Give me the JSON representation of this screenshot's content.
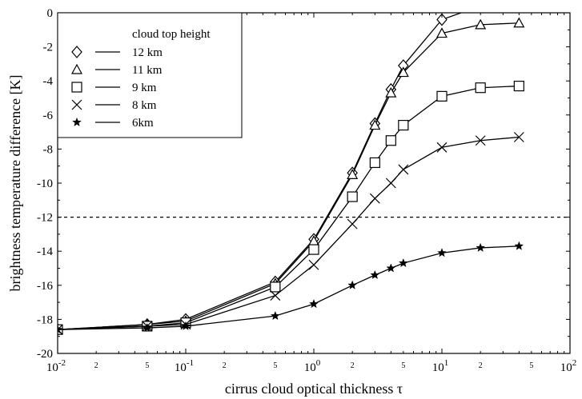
{
  "chart_data": {
    "type": "line",
    "xlabel": "cirrus cloud optical thickness τ",
    "ylabel": "brightness temperature difference [K]",
    "xscale": "log",
    "xlim": [
      0.01,
      100
    ],
    "ylim": [
      -20,
      0
    ],
    "x_tick_labels": [
      {
        "value": 0.01,
        "base": "10",
        "exp": "-2"
      },
      {
        "value": 0.1,
        "base": "10",
        "exp": "-1"
      },
      {
        "value": 1,
        "base": "10",
        "exp": "0"
      },
      {
        "value": 10,
        "base": "10",
        "exp": "1"
      },
      {
        "value": 100,
        "base": "10",
        "exp": "2"
      }
    ],
    "x_minor_labels": [
      {
        "value": 0.02,
        "label": "2"
      },
      {
        "value": 0.05,
        "label": "5"
      },
      {
        "value": 0.2,
        "label": "2"
      },
      {
        "value": 0.5,
        "label": "5"
      },
      {
        "value": 2,
        "label": "2"
      },
      {
        "value": 5,
        "label": "5"
      },
      {
        "value": 20,
        "label": "2"
      },
      {
        "value": 50,
        "label": "5"
      }
    ],
    "y_ticks": [
      0,
      -2,
      -4,
      -6,
      -8,
      -10,
      -12,
      -14,
      -16,
      -18,
      -20
    ],
    "y_tick_labels": [
      "0",
      "-2",
      "-4",
      "-6",
      "-8",
      "-10",
      "-12",
      "-14",
      "-16",
      "-18",
      "-20"
    ],
    "reference_line": {
      "y": -12,
      "style": "dashed"
    },
    "legend": {
      "title": "cloud top height",
      "placement": "top-left"
    },
    "x": [
      0.01,
      0.05,
      0.1,
      0.5,
      1,
      2,
      3,
      4,
      5,
      10,
      20,
      40
    ],
    "series": [
      {
        "name": "12 km",
        "marker": "diamond",
        "values": [
          -18.6,
          -18.3,
          -18.0,
          -15.8,
          -13.3,
          -9.4,
          -6.5,
          -4.5,
          -3.1,
          -0.4,
          0.4,
          0.6
        ]
      },
      {
        "name": "11 km",
        "marker": "triangle",
        "values": [
          -18.6,
          -18.3,
          -18.1,
          -15.9,
          -13.4,
          -9.5,
          -6.6,
          -4.7,
          -3.5,
          -1.2,
          -0.7,
          -0.6
        ]
      },
      {
        "name": "9 km",
        "marker": "square",
        "values": [
          -18.6,
          -18.4,
          -18.2,
          -16.1,
          -13.9,
          -10.8,
          -8.8,
          -7.5,
          -6.6,
          -4.9,
          -4.4,
          -4.3
        ]
      },
      {
        "name": "8 km",
        "marker": "cross",
        "values": [
          -18.6,
          -18.4,
          -18.3,
          -16.6,
          -14.8,
          -12.4,
          -10.9,
          -10.0,
          -9.2,
          -7.9,
          -7.5,
          -7.3
        ]
      },
      {
        "name": "6km",
        "marker": "star",
        "values": [
          -18.6,
          -18.5,
          -18.4,
          -17.8,
          -17.1,
          -16.0,
          -15.4,
          -15.0,
          -14.7,
          -14.1,
          -13.8,
          -13.7
        ]
      }
    ]
  }
}
